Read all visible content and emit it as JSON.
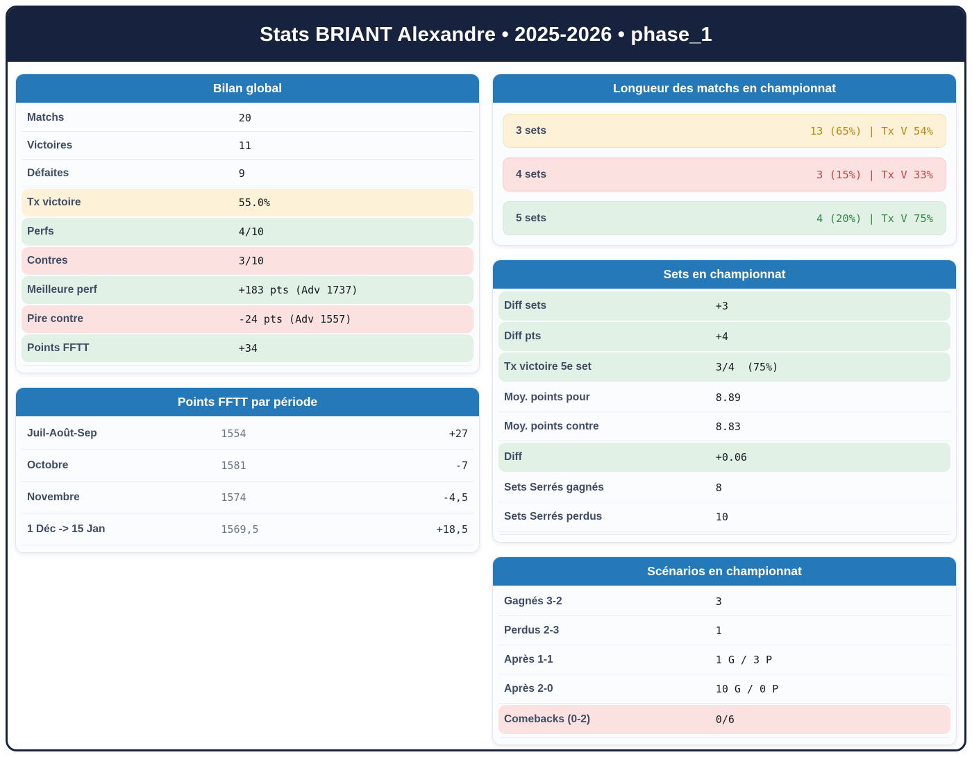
{
  "header": {
    "title": "Stats BRIANT Alexandre • 2025-2026 • phase_1"
  },
  "colors": {
    "navy": "#17233e",
    "blue": "#2579b8",
    "amber-text": "#b8860b",
    "red-text": "#c94040",
    "green-text": "#2e8b44",
    "yellow-bg": "#fdf1d7",
    "pink-bg": "#fce1e1",
    "green-bg": "#e1f1e5"
  },
  "cards": {
    "bilan": {
      "title": "Bilan global",
      "rows": [
        {
          "label": "Matchs",
          "value": "20",
          "variant": "plain"
        },
        {
          "label": "Victoires",
          "value": "11",
          "variant": "plain"
        },
        {
          "label": "Défaites",
          "value": "9",
          "variant": "plain"
        },
        {
          "label": "Tx victoire",
          "value": "55.0%",
          "variant": "yellow"
        },
        {
          "label": "Perfs",
          "value": "4/10",
          "variant": "green"
        },
        {
          "label": "Contres",
          "value": "3/10",
          "variant": "pink"
        },
        {
          "label": "Meilleure perf",
          "value": "+183 pts (Adv 1737)",
          "variant": "green"
        },
        {
          "label": "Pire contre",
          "value": "-24 pts (Adv 1557)",
          "variant": "pink"
        },
        {
          "label": "Points FFTT",
          "value": "+34",
          "variant": "green"
        }
      ]
    },
    "periods": {
      "title": "Points FFTT par période",
      "rows": [
        {
          "label": "Juil-Août-Sep",
          "value": "1554",
          "delta": "+27"
        },
        {
          "label": "Octobre",
          "value": "1581",
          "delta": "-7"
        },
        {
          "label": "Novembre",
          "value": "1574",
          "delta": "-4,5"
        },
        {
          "label": "1 Déc -> 15 Jan",
          "value": "1569,5",
          "delta": "+18,5"
        }
      ]
    },
    "longueur": {
      "title": "Longueur des matchs en championnat",
      "rows": [
        {
          "label": "3 sets",
          "value": "13 (65%) | Tx V 54%",
          "variant": "yellow"
        },
        {
          "label": "4 sets",
          "value": "3 (15%) | Tx V 33%",
          "variant": "pink"
        },
        {
          "label": "5 sets",
          "value": "4 (20%) | Tx V 75%",
          "variant": "green"
        }
      ]
    },
    "sets": {
      "title": "Sets en championnat",
      "rows": [
        {
          "label": "Diff sets",
          "value": "+3",
          "variant": "green"
        },
        {
          "label": "Diff pts",
          "value": "+4",
          "variant": "green"
        },
        {
          "label": "Tx victoire 5e set",
          "value": "3/4  (75%)",
          "variant": "green"
        },
        {
          "label": "Moy. points pour",
          "value": "8.89",
          "variant": "plain"
        },
        {
          "label": "Moy. points contre",
          "value": "8.83",
          "variant": "plain"
        },
        {
          "label": "Diff",
          "value": "+0.06",
          "variant": "green"
        },
        {
          "label": "Sets Serrés gagnés",
          "value": "8",
          "variant": "plain"
        },
        {
          "label": "Sets Serrés perdus",
          "value": "10",
          "variant": "plain"
        }
      ]
    },
    "scenarios": {
      "title": "Scénarios en championnat",
      "rows": [
        {
          "label": "Gagnés 3-2",
          "value": "3",
          "variant": "plain"
        },
        {
          "label": "Perdus 2-3",
          "value": "1",
          "variant": "plain"
        },
        {
          "label": "Après 1-1",
          "value": "1 G / 3 P",
          "variant": "plain"
        },
        {
          "label": "Après 2-0",
          "value": "10 G / 0 P",
          "variant": "plain"
        },
        {
          "label": "Comebacks (0-2)",
          "value": "0/6",
          "variant": "pink"
        }
      ]
    }
  }
}
